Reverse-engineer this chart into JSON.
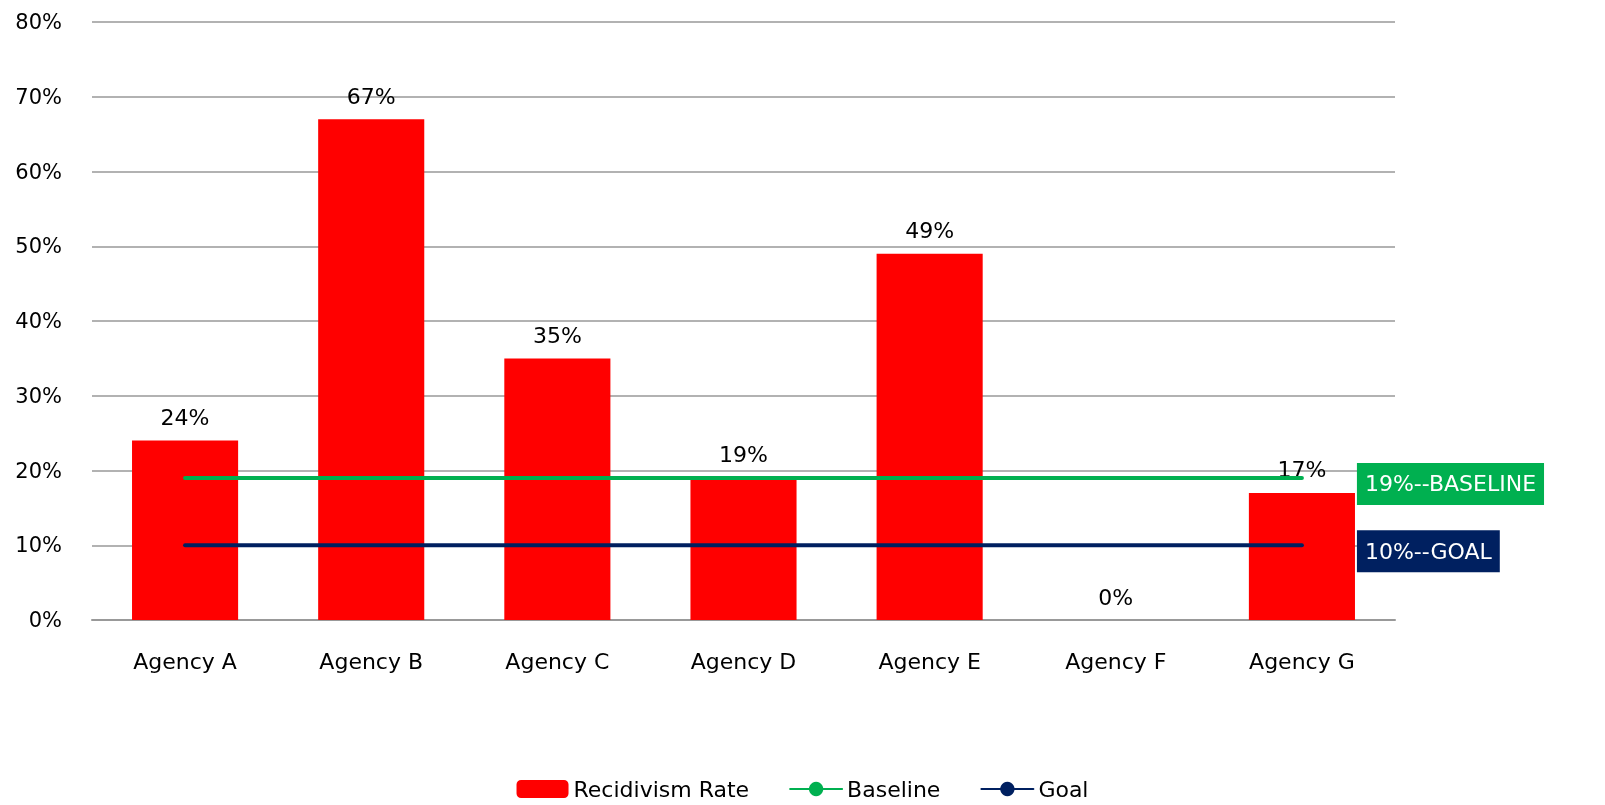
{
  "chart_data": {
    "type": "bar",
    "categories": [
      "Agency A",
      "Agency B",
      "Agency C",
      "Agency D",
      "Agency E",
      "Agency F",
      "Agency G"
    ],
    "series": [
      {
        "name": "Recidivism Rate",
        "color": "#ff0000",
        "values": [
          24,
          67,
          35,
          19,
          49,
          0,
          17
        ],
        "value_labels": [
          "24%",
          "67%",
          "35%",
          "19%",
          "49%",
          "0%",
          "17%"
        ]
      },
      {
        "name": "Baseline",
        "type": "line",
        "color": "#00b050",
        "values": [
          19,
          19,
          19,
          19,
          19,
          19,
          19
        ]
      },
      {
        "name": "Goal",
        "type": "line",
        "color": "#002060",
        "values": [
          10,
          10,
          10,
          10,
          10,
          10,
          10
        ]
      }
    ],
    "annotations": [
      {
        "text": "19%--BASELINE",
        "x": "Agency G",
        "y": 19
      },
      {
        "text": "10%--GOAL",
        "x": "Agency G",
        "y": 10
      }
    ],
    "ylim": [
      0,
      80
    ],
    "yticks": [
      {
        "value": 0,
        "label": "0%"
      },
      {
        "value": 10,
        "label": "10%"
      },
      {
        "value": 20,
        "label": "20%"
      },
      {
        "value": 30,
        "label": "30%"
      },
      {
        "value": 40,
        "label": "40%"
      },
      {
        "value": 50,
        "label": "50%"
      },
      {
        "value": 60,
        "label": "60%"
      },
      {
        "value": 70,
        "label": "70%"
      },
      {
        "value": 80,
        "label": "80%"
      }
    ],
    "grid": "y",
    "legend": "bottom",
    "marker": "none",
    "line_style": "solid"
  }
}
